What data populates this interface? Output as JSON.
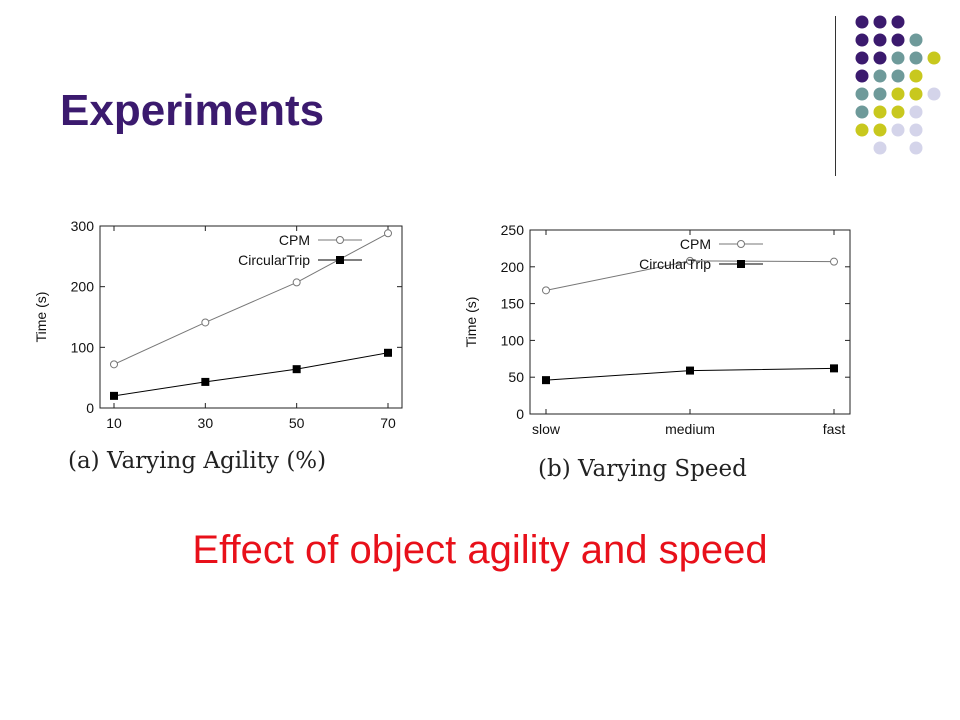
{
  "slide": {
    "title": "Experiments",
    "subtitle": "Effect of object agility and speed"
  },
  "decor_colors": {
    "purple": "#3b1a6e",
    "teal": "#6e9a9a",
    "lime": "#c8c81e",
    "lavender": "#d4d4ea"
  },
  "chart_data": [
    {
      "type": "line",
      "caption": "(a) Varying Agility (%)",
      "xlabel": "",
      "ylabel": "Time (s)",
      "categories": [
        "10",
        "30",
        "50",
        "70"
      ],
      "ylim": [
        0,
        300
      ],
      "yticks": [
        0,
        100,
        200,
        300
      ],
      "legend": "top-left",
      "grid": false,
      "series": [
        {
          "name": "CPM",
          "marker": "open-circle",
          "color": "#777777",
          "values": [
            72,
            141,
            207,
            288
          ]
        },
        {
          "name": "CircularTrip",
          "marker": "filled-square",
          "color": "#000000",
          "values": [
            20,
            43,
            64,
            91
          ]
        }
      ]
    },
    {
      "type": "line",
      "caption": "(b) Varying Speed",
      "xlabel": "",
      "ylabel": "Time (s)",
      "categories": [
        "slow",
        "medium",
        "fast"
      ],
      "ylim": [
        0,
        250
      ],
      "yticks": [
        0,
        50,
        100,
        150,
        200,
        250
      ],
      "legend": "top-left",
      "grid": false,
      "series": [
        {
          "name": "CPM",
          "marker": "open-circle",
          "color": "#777777",
          "values": [
            168,
            208,
            207
          ]
        },
        {
          "name": "CircularTrip",
          "marker": "filled-square",
          "color": "#000000",
          "values": [
            46,
            59,
            62
          ]
        }
      ]
    }
  ]
}
